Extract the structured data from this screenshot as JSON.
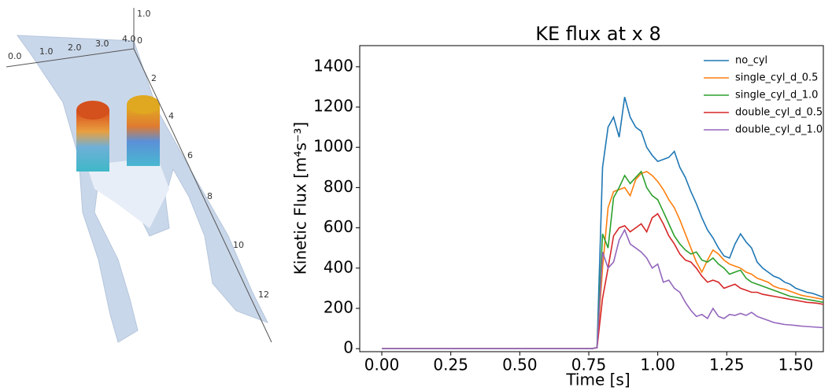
{
  "render_3d": {
    "axis_labels": [
      "1.0",
      "0.0",
      "1.0",
      "2.0",
      "3.0",
      "4.0",
      "0",
      "2",
      "4",
      "6",
      "8",
      "10",
      "12"
    ]
  },
  "chart_data": {
    "type": "line",
    "title": "KE flux at x 8",
    "xlabel": "Time [s]",
    "ylabel": "Kinetic Flux [m⁴s⁻³]",
    "x": [
      0,
      0.1,
      0.2,
      0.3,
      0.4,
      0.5,
      0.6,
      0.7,
      0.76,
      0.78,
      0.8,
      0.82,
      0.84,
      0.86,
      0.88,
      0.9,
      0.92,
      0.94,
      0.96,
      0.98,
      1,
      1.02,
      1.04,
      1.06,
      1.08,
      1.1,
      1.12,
      1.14,
      1.16,
      1.18,
      1.2,
      1.22,
      1.24,
      1.26,
      1.28,
      1.3,
      1.32,
      1.34,
      1.36,
      1.38,
      1.4,
      1.42,
      1.44,
      1.46,
      1.48,
      1.5,
      1.52,
      1.54,
      1.56,
      1.58,
      1.6
    ],
    "series": [
      {
        "name": "no_cyl",
        "color": "#1f77b4",
        "values": [
          0,
          0,
          0,
          0,
          0,
          0,
          0,
          0,
          0,
          5,
          900,
          1100,
          1150,
          1050,
          1250,
          1150,
          1100,
          1080,
          1000,
          960,
          930,
          940,
          950,
          980,
          900,
          850,
          780,
          720,
          650,
          590,
          550,
          500,
          460,
          450,
          520,
          570,
          530,
          500,
          430,
          400,
          380,
          360,
          350,
          330,
          320,
          300,
          290,
          280,
          275,
          265,
          255
        ]
      },
      {
        "name": "single_cyl_d_0.5",
        "color": "#ff7f0e",
        "values": [
          0,
          0,
          0,
          0,
          0,
          0,
          0,
          0,
          0,
          5,
          400,
          700,
          780,
          790,
          800,
          760,
          840,
          870,
          880,
          860,
          830,
          790,
          740,
          700,
          640,
          570,
          500,
          430,
          380,
          440,
          490,
          470,
          440,
          420,
          410,
          400,
          380,
          370,
          350,
          340,
          330,
          310,
          300,
          295,
          285,
          275,
          265,
          260,
          255,
          250,
          245
        ]
      },
      {
        "name": "single_cyl_d_1.0",
        "color": "#2ca02c",
        "values": [
          0,
          0,
          0,
          0,
          0,
          0,
          0,
          0,
          0,
          5,
          570,
          500,
          750,
          800,
          860,
          820,
          850,
          880,
          800,
          760,
          740,
          680,
          620,
          560,
          520,
          490,
          470,
          480,
          440,
          430,
          450,
          420,
          400,
          370,
          380,
          390,
          350,
          330,
          320,
          310,
          300,
          290,
          280,
          270,
          260,
          255,
          250,
          245,
          240,
          235,
          230
        ]
      },
      {
        "name": "double_cyl_d_0.5",
        "color": "#d62728",
        "values": [
          0,
          0,
          0,
          0,
          0,
          0,
          0,
          0,
          0,
          5,
          250,
          400,
          560,
          600,
          610,
          580,
          600,
          620,
          580,
          650,
          670,
          620,
          560,
          520,
          470,
          440,
          430,
          400,
          360,
          330,
          340,
          330,
          300,
          310,
          320,
          300,
          290,
          280,
          280,
          270,
          265,
          260,
          255,
          250,
          245,
          240,
          235,
          230,
          228,
          225,
          220
        ]
      },
      {
        "name": "double_cyl_d_1.0",
        "color": "#9467bd",
        "values": [
          0,
          0,
          0,
          0,
          0,
          0,
          0,
          0,
          0,
          5,
          480,
          400,
          430,
          540,
          590,
          520,
          500,
          480,
          450,
          400,
          420,
          330,
          340,
          300,
          280,
          230,
          190,
          160,
          170,
          150,
          200,
          160,
          150,
          170,
          165,
          175,
          165,
          180,
          160,
          150,
          140,
          130,
          125,
          120,
          118,
          115,
          112,
          110,
          108,
          106,
          104
        ]
      }
    ],
    "xlim": [
      -0.08,
      1.6
    ],
    "ylim": [
      -15,
      1505
    ],
    "xticks": [
      {
        "value": 0,
        "label": "0.00"
      },
      {
        "value": 0.25,
        "label": "0.25"
      },
      {
        "value": 0.5,
        "label": "0.50"
      },
      {
        "value": 0.75,
        "label": "0.75"
      },
      {
        "value": 1,
        "label": "1.00"
      },
      {
        "value": 1.25,
        "label": "1.25"
      },
      {
        "value": 1.5,
        "label": "1.50"
      }
    ],
    "yticks": [
      0,
      200,
      400,
      600,
      800,
      1000,
      1200,
      1400
    ],
    "grid": false,
    "legend": "upper right"
  }
}
